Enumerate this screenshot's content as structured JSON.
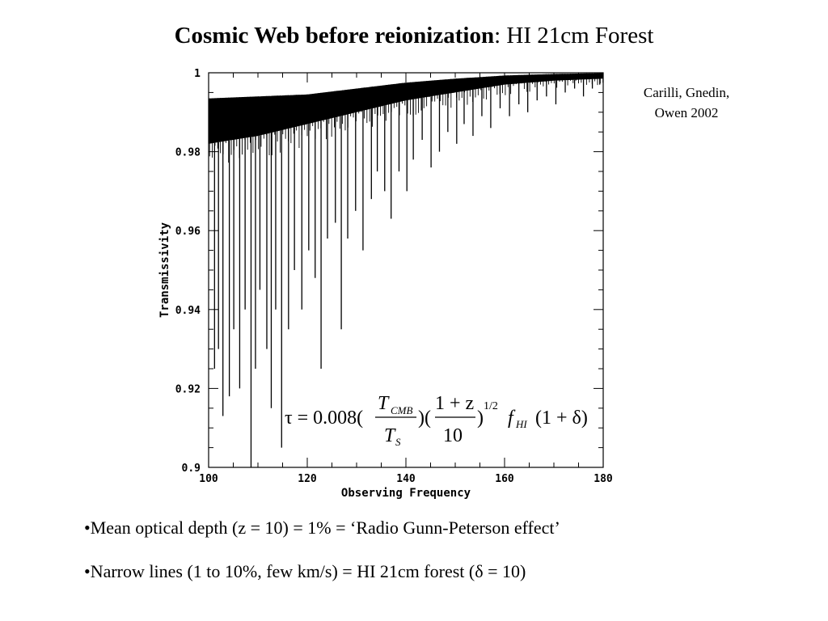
{
  "title": {
    "bold": "Cosmic Web before reionization",
    "rest": ": HI 21cm Forest"
  },
  "citation": {
    "line1": "Carilli, Gnedin,",
    "line2": "Owen 2002"
  },
  "formula": {
    "lhs": "τ = 0.008(",
    "frac1_num": "T",
    "frac1_num_sub": "CMB",
    "frac1_den": "T",
    "frac1_den_sub": "S",
    "mid": ")(",
    "frac2_num": "1 + z",
    "frac2_den": "10",
    "close": ")",
    "exponent": "1/2",
    "f": "f",
    "f_sub": "HI",
    "tail": "(1 + δ)"
  },
  "bullets": [
    "•Mean optical depth (z = 10) = 1%  =  ‘Radio Gunn-Peterson effect’",
    "•Narrow lines (1 to 10%, few km/s) = HI 21cm forest (δ = 10)"
  ],
  "chart_data": {
    "type": "line",
    "xlabel": "Observing Frequency",
    "ylabel": "Transmissivity",
    "xlim": [
      100,
      180
    ],
    "ylim": [
      0.9,
      1.0
    ],
    "x_ticks": [
      100,
      120,
      140,
      160,
      180
    ],
    "x_tick_labels": [
      "100",
      "120",
      "140",
      "160",
      "180"
    ],
    "y_ticks": [
      0.9,
      0.92,
      0.94,
      0.96,
      0.98,
      1.0
    ],
    "y_tick_labels": [
      "0.9",
      "0.92",
      "0.94",
      "0.96",
      "0.98",
      "1"
    ],
    "series": [
      {
        "envelope_x": [
          100,
          110,
          120,
          130,
          140,
          150,
          160,
          170,
          180
        ],
        "envelope_top": [
          0.9935,
          0.994,
          0.9945,
          0.996,
          0.9975,
          0.9985,
          0.9993,
          0.9997,
          0.9999
        ],
        "envelope_bottom": [
          0.982,
          0.984,
          0.987,
          0.99,
          0.993,
          0.995,
          0.997,
          0.998,
          0.9985
        ],
        "absorption_lines": [
          [
            101.2,
            0.925
          ],
          [
            102.0,
            0.93
          ],
          [
            102.9,
            0.913
          ],
          [
            104.2,
            0.918
          ],
          [
            105.1,
            0.935
          ],
          [
            106.3,
            0.92
          ],
          [
            107.4,
            0.94
          ],
          [
            108.6,
            0.9
          ],
          [
            109.5,
            0.925
          ],
          [
            110.4,
            0.945
          ],
          [
            111.8,
            0.93
          ],
          [
            112.7,
            0.915
          ],
          [
            113.6,
            0.94
          ],
          [
            114.8,
            0.905
          ],
          [
            116.2,
            0.935
          ],
          [
            117.4,
            0.95
          ],
          [
            118.9,
            0.94
          ],
          [
            120.3,
            0.955
          ],
          [
            121.6,
            0.948
          ],
          [
            122.8,
            0.925
          ],
          [
            124.1,
            0.958
          ],
          [
            125.7,
            0.962
          ],
          [
            126.9,
            0.935
          ],
          [
            128.2,
            0.958
          ],
          [
            129.8,
            0.965
          ],
          [
            131.3,
            0.955
          ],
          [
            133.0,
            0.968
          ],
          [
            134.2,
            0.975
          ],
          [
            135.7,
            0.97
          ],
          [
            137.0,
            0.963
          ],
          [
            138.6,
            0.975
          ],
          [
            140.2,
            0.97
          ],
          [
            141.5,
            0.978
          ],
          [
            143.3,
            0.983
          ],
          [
            145.1,
            0.976
          ],
          [
            146.8,
            0.98
          ],
          [
            148.5,
            0.985
          ],
          [
            150.3,
            0.982
          ],
          [
            151.8,
            0.987
          ],
          [
            153.6,
            0.984
          ],
          [
            155.4,
            0.989
          ],
          [
            157.2,
            0.986
          ],
          [
            159.1,
            0.991
          ],
          [
            161.0,
            0.989
          ],
          [
            162.9,
            0.992
          ],
          [
            164.7,
            0.99
          ],
          [
            166.6,
            0.993
          ],
          [
            168.5,
            0.994
          ],
          [
            170.4,
            0.992
          ],
          [
            172.3,
            0.995
          ],
          [
            174.2,
            0.996
          ],
          [
            176.0,
            0.994
          ],
          [
            177.8,
            0.996
          ],
          [
            179.3,
            0.997
          ]
        ]
      }
    ]
  }
}
